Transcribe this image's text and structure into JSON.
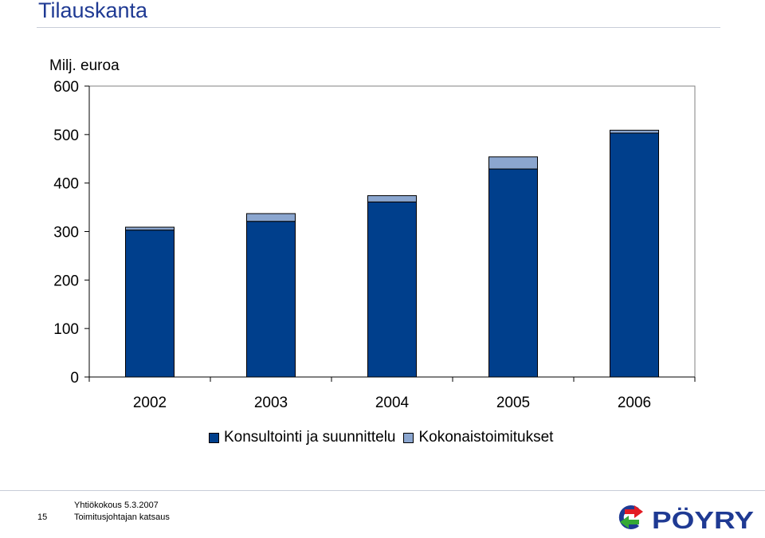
{
  "slide": {
    "title": "Tilauskanta"
  },
  "footer": {
    "page_number": "15",
    "line1": "Yhtiökokous 5.3.2007",
    "line2": "Toimitusjohtajan katsaus",
    "logo_text": "PÖYRY",
    "logo_colors": [
      "#1f3a93",
      "#36a935",
      "#e31b23"
    ]
  },
  "chart_data": {
    "type": "bar",
    "stacked": true,
    "ylabel": "Milj. euroa",
    "ylim": [
      0,
      600
    ],
    "yticks": [
      0,
      100,
      200,
      300,
      400,
      500,
      600
    ],
    "categories": [
      "2002",
      "2003",
      "2004",
      "2005",
      "2006"
    ],
    "series": [
      {
        "name": "Konsultointi ja suunnittelu",
        "color": "#003f8c",
        "values": [
          303,
          321,
          361,
          429,
          503
        ]
      },
      {
        "name": "Kokonaistoimitukset",
        "color": "#8ba6cf",
        "values": [
          6,
          16,
          13,
          25,
          6
        ]
      }
    ],
    "grid": false,
    "legend": "bottom"
  }
}
